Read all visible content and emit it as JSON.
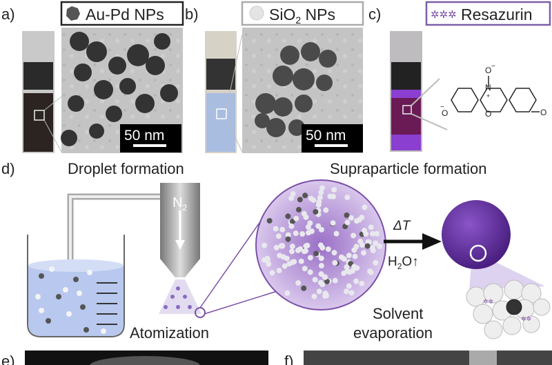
{
  "panels": {
    "a": {
      "label": "a)",
      "legend": "Au-Pd NPs",
      "scale_bar": "50 nm"
    },
    "b": {
      "label": "b)",
      "legend_main": "SiO",
      "legend_sub": "2",
      "legend_tail": " NPs",
      "scale_bar": "50 nm"
    },
    "c": {
      "label": "c)",
      "legend": "Resazurin",
      "molecule_atoms": {
        "n": "N",
        "o_top": "O",
        "o_ring": "O",
        "o_left": "O",
        "o_right": "O",
        "minus": "−",
        "plus": "+"
      }
    },
    "d": {
      "label": "d)",
      "droplet_title": "Droplet formation",
      "supraparticle_title": "Supraparticle formation",
      "gas_main": "N",
      "gas_sub": "2",
      "atomization": "Atomization",
      "delta_t": "ΔT",
      "water_main": "H",
      "water_sub": "2",
      "water_tail": "O↑",
      "solvent_line1": "Solvent",
      "solvent_line2": "evaporation"
    },
    "e": {
      "label": "e)"
    },
    "f": {
      "label": "f)"
    }
  },
  "colors": {
    "purple": "#7b4fa8",
    "liquid": "#b8c8ee",
    "gold_np": "#555555",
    "silica": "#e8e8ee"
  }
}
